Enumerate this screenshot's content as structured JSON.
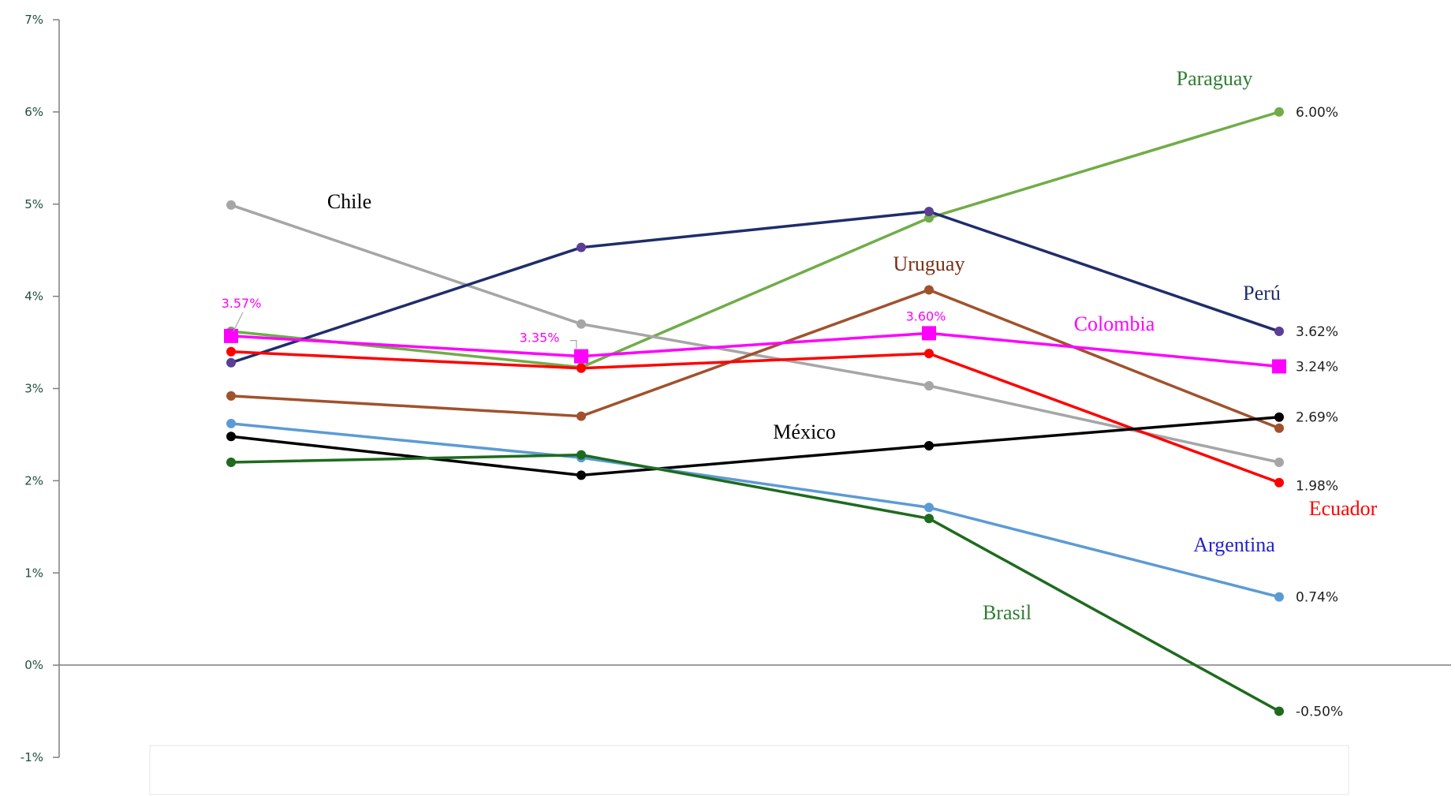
{
  "chart_data": {
    "type": "line",
    "ylim": [
      -1,
      7
    ],
    "yticks": [
      "-1%",
      "0%",
      "1%",
      "2%",
      "3%",
      "4%",
      "5%",
      "6%",
      "7%"
    ],
    "y_tick_values": [
      -1,
      0,
      1,
      2,
      3,
      4,
      5,
      6,
      7
    ],
    "x": [
      1,
      2,
      3,
      4
    ],
    "grid": false,
    "legend": "none",
    "series": [
      {
        "name": "Paraguay",
        "color": "#70ad47",
        "values": [
          3.62,
          3.23,
          4.85,
          6.0
        ],
        "end_label": "6.00%"
      },
      {
        "name": "Chile",
        "color": "#a6a6a6",
        "values": [
          4.99,
          3.7,
          3.03,
          2.2
        ]
      },
      {
        "name": "Perú",
        "color": "#1f2d6b",
        "marker_color": "#5a3f97",
        "values": [
          3.28,
          4.53,
          4.92,
          3.62
        ],
        "end_label": "3.62%"
      },
      {
        "name": "Uruguay",
        "color": "#a0522d",
        "values": [
          2.92,
          2.7,
          4.07,
          2.57
        ]
      },
      {
        "name": "Colombia",
        "color": "#ff00ff",
        "marker": "square",
        "values": [
          3.57,
          3.35,
          3.6,
          3.24
        ],
        "end_label": "3.24%",
        "point_labels": [
          "3.57%",
          "3.35%",
          "3.60%"
        ]
      },
      {
        "name": "Ecuador",
        "color": "#ff0000",
        "values": [
          3.4,
          3.22,
          3.38,
          1.98
        ],
        "end_label": "1.98%"
      },
      {
        "name": "México",
        "color": "#000000",
        "values": [
          2.48,
          2.06,
          2.38,
          2.69
        ],
        "end_label": "2.69%"
      },
      {
        "name": "Argentina",
        "color": "#5b9bd5",
        "values": [
          2.62,
          2.25,
          1.71,
          0.74
        ],
        "end_label": "0.74%"
      },
      {
        "name": "Brasil",
        "color": "#1e6b1e",
        "values": [
          2.2,
          2.28,
          1.59,
          -0.5
        ],
        "end_label": "-0.50%"
      }
    ],
    "series_labels": [
      {
        "text": "Paraguay",
        "color": "#2e7d32"
      },
      {
        "text": "Chile",
        "color": "#000000"
      },
      {
        "text": "Perú",
        "color": "#1f2d6b"
      },
      {
        "text": "Uruguay",
        "color": "#7b2d12"
      },
      {
        "text": "Colombia",
        "color": "#ff00ff"
      },
      {
        "text": "México",
        "color": "#000000"
      },
      {
        "text": "Ecuador",
        "color": "#ff0000"
      },
      {
        "text": "Argentina",
        "color": "#2222cc"
      },
      {
        "text": "Brasil",
        "color": "#2e7d32"
      }
    ]
  }
}
